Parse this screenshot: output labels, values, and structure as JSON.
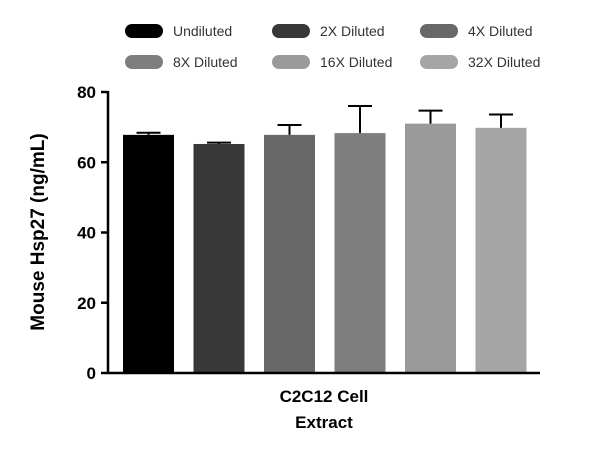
{
  "chart_data": {
    "type": "bar",
    "title": "",
    "xlabel": [
      "C2C12 Cell",
      "Extract"
    ],
    "ylabel": "Mouse Hsp27 (ng/mL)",
    "ylim": [
      0,
      80
    ],
    "yticks": [
      "0",
      "20",
      "40",
      "60",
      "80"
    ],
    "grid": false,
    "legend_position": "top",
    "series": [
      {
        "name": "Undiluted",
        "value": 67.8,
        "error": 0.6,
        "color": "#000000"
      },
      {
        "name": "2X Diluted",
        "value": 65.2,
        "error": 0.4,
        "color": "#383838"
      },
      {
        "name": "4X Diluted",
        "value": 67.8,
        "error": 2.8,
        "color": "#686868"
      },
      {
        "name": "8X Diluted",
        "value": 68.3,
        "error": 7.7,
        "color": "#7e7e7e"
      },
      {
        "name": "16X Diluted",
        "value": 71.0,
        "error": 3.7,
        "color": "#9a9a9a"
      },
      {
        "name": "32X Diluted",
        "value": 69.8,
        "error": 3.8,
        "color": "#a5a5a5"
      }
    ]
  }
}
